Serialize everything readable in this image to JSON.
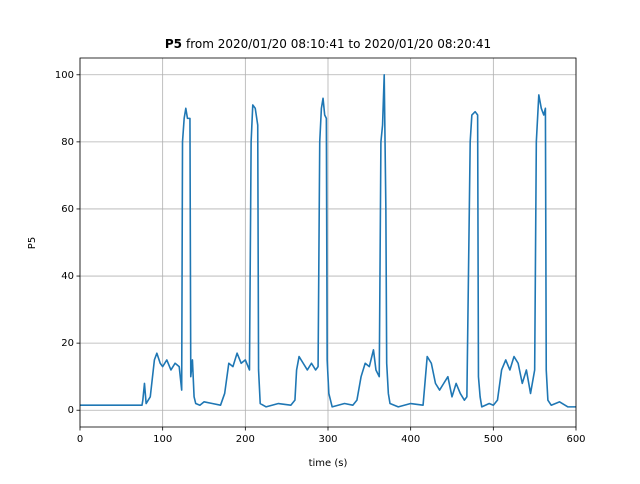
{
  "chart_data": {
    "type": "line",
    "title_parts": [
      "P5",
      "from 2020/01/20 08:10:41 to 2020/01/20 08:20:41"
    ],
    "x_label": "time (s)",
    "y_label": "P5",
    "xlim": [
      0,
      600
    ],
    "ylim": [
      -5,
      105
    ],
    "xticks": [
      0,
      100,
      200,
      300,
      400,
      500,
      600
    ],
    "yticks": [
      0,
      20,
      40,
      60,
      80,
      100
    ],
    "grid": true,
    "series": [
      {
        "name": "P5",
        "color": "#1f77b4",
        "x": [
          0,
          75,
          76,
          78,
          80,
          85,
          90,
          93,
          97,
          100,
          105,
          110,
          115,
          120,
          123,
          124,
          126,
          128,
          130,
          133,
          134,
          136,
          138,
          140,
          145,
          150,
          160,
          170,
          175,
          180,
          185,
          190,
          195,
          200,
          205,
          207,
          209,
          212,
          215,
          216,
          218,
          225,
          240,
          255,
          260,
          262,
          265,
          270,
          275,
          280,
          285,
          288,
          290,
          292,
          294,
          296,
          298,
          299,
          301,
          305,
          320,
          330,
          335,
          340,
          345,
          350,
          355,
          358,
          362,
          364,
          366,
          368,
          370,
          371,
          373,
          375,
          385,
          400,
          415,
          420,
          425,
          430,
          435,
          440,
          445,
          450,
          455,
          460,
          465,
          468,
          472,
          474,
          478,
          481,
          482,
          484,
          486,
          495,
          500,
          505,
          510,
          515,
          520,
          525,
          530,
          535,
          540,
          545,
          550,
          552,
          555,
          558,
          561,
          563,
          564,
          566,
          570,
          580,
          590,
          600
        ],
        "values": [
          1.5,
          1.5,
          3,
          8,
          2,
          4,
          15,
          17,
          14,
          13,
          15,
          12,
          14,
          13,
          6,
          80,
          87,
          90,
          87,
          87,
          10,
          15,
          4,
          2,
          1.5,
          2.5,
          2,
          1.5,
          5,
          14,
          13,
          17,
          14,
          15,
          12,
          80,
          91,
          90,
          85,
          12,
          2,
          1,
          2,
          1.5,
          3,
          12,
          16,
          14,
          12,
          14,
          12,
          13,
          80,
          90,
          93,
          88,
          87,
          15,
          5,
          1,
          2,
          1.5,
          3,
          10,
          14,
          13,
          18,
          12,
          10,
          80,
          85,
          100,
          60,
          14,
          5,
          2,
          1,
          2,
          1.5,
          16,
          14,
          8,
          6,
          8,
          10,
          4,
          8,
          5,
          3,
          4,
          80,
          88,
          89,
          88,
          10,
          4,
          1,
          2,
          1.5,
          3,
          12,
          15,
          12,
          16,
          14,
          8,
          12,
          5,
          12,
          80,
          94,
          90,
          88,
          90,
          12,
          3,
          1.5,
          2.5,
          1,
          1
        ]
      }
    ]
  }
}
